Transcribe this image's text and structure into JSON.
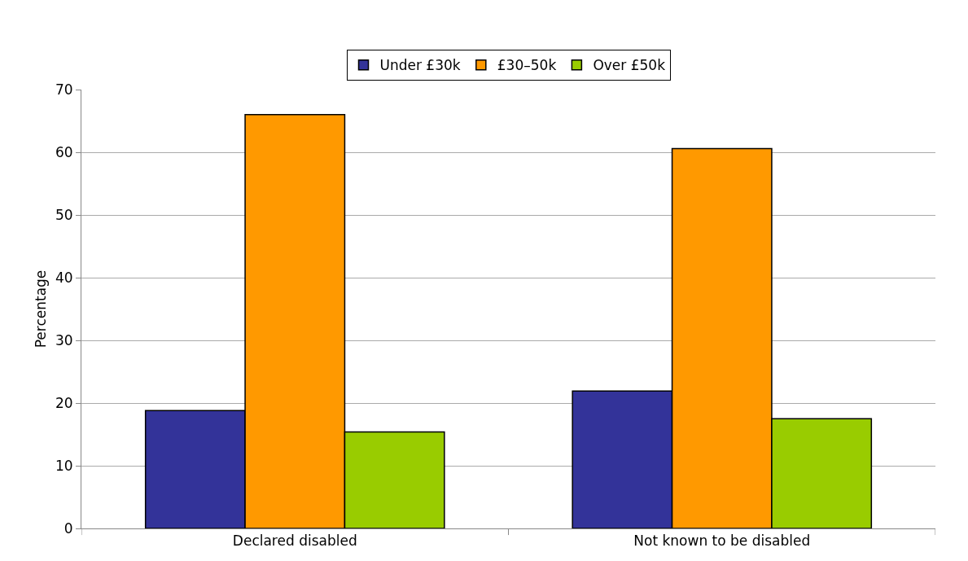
{
  "chart_data": {
    "type": "bar",
    "ylabel": "Percentage",
    "categories": [
      "Declared disabled",
      "Not known to be disabled"
    ],
    "series": [
      {
        "name": "Under £30k",
        "color": "#333399",
        "values": [
          18.8,
          21.9
        ]
      },
      {
        "name": "£30–50k",
        "color": "#ff9900",
        "values": [
          66,
          60.6
        ]
      },
      {
        "name": "Over £50k",
        "color": "#99cc00",
        "values": [
          15.4,
          17.5
        ]
      }
    ],
    "ylim": [
      0,
      70
    ],
    "yticks": [
      0,
      10,
      20,
      30,
      40,
      50,
      60,
      70
    ],
    "grid": "y",
    "legend": "top"
  }
}
